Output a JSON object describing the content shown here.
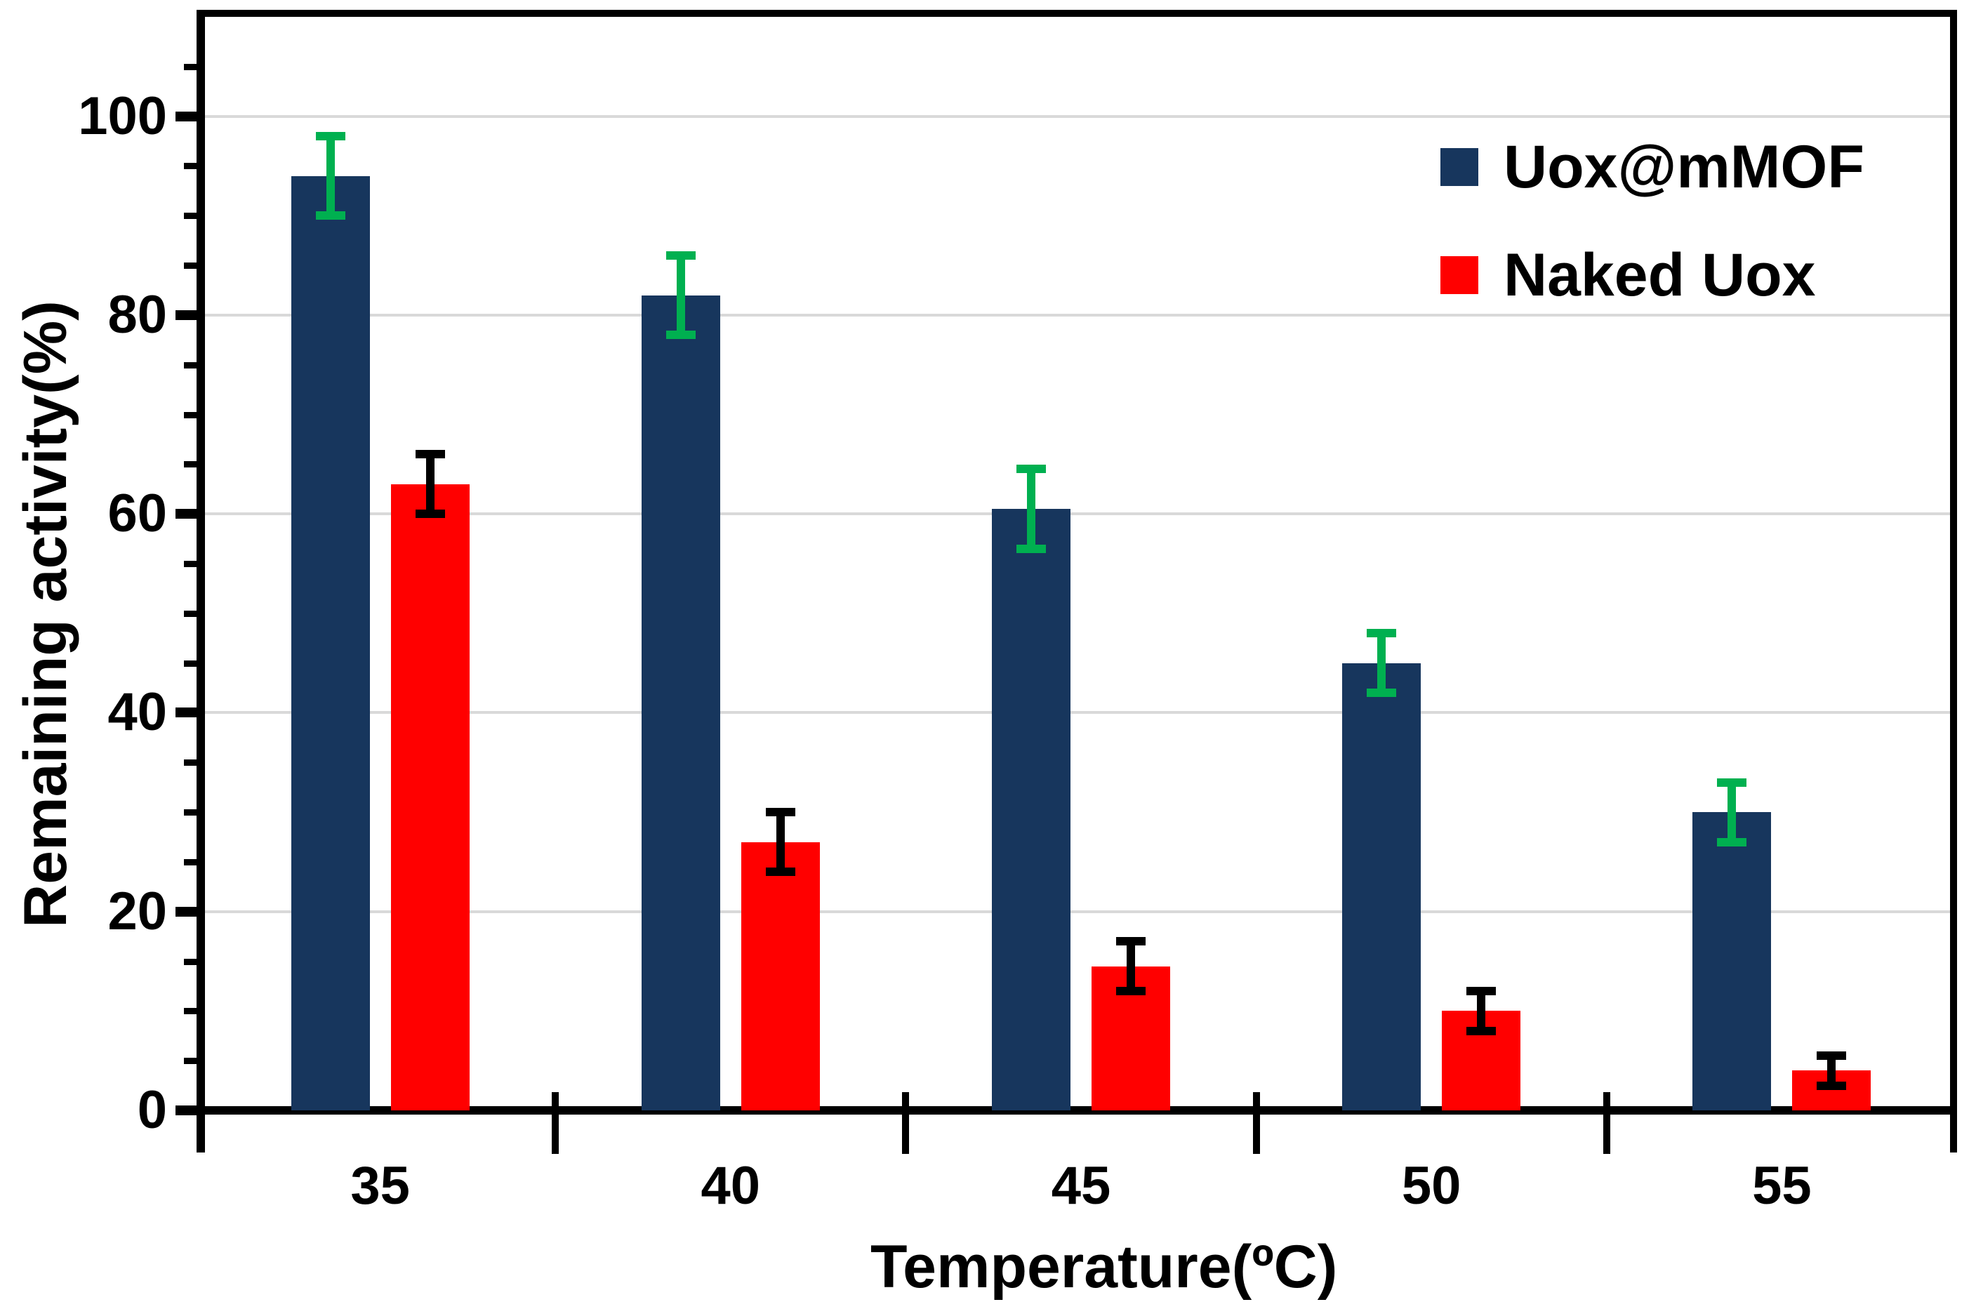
{
  "chart_data": {
    "type": "bar",
    "title": "",
    "categories": [
      "35",
      "40",
      "45",
      "50",
      "55"
    ],
    "xlabel": "Temperature(ºC)",
    "ylabel": "Remaining activity(%)",
    "ylim": [
      0,
      110
    ],
    "ytick_major": [
      0,
      20,
      40,
      60,
      80,
      100
    ],
    "ytick_minor_step": 5,
    "gridlines": [
      20,
      40,
      60,
      80,
      100
    ],
    "grid": true,
    "legend_position": "top-right",
    "series": [
      {
        "name": "Uox@mMOF",
        "color": "#17365D",
        "error_color": "#00B050",
        "values": [
          94,
          82,
          60.5,
          45,
          30
        ],
        "errors": [
          4,
          4,
          4,
          3,
          3
        ]
      },
      {
        "name": "Naked Uox",
        "color": "#FF0000",
        "error_color": "#000000",
        "values": [
          63,
          27,
          14.5,
          10,
          4
        ],
        "errors": [
          3,
          3,
          2.5,
          2,
          1.5
        ]
      }
    ]
  },
  "colors": {
    "axis": "#000000",
    "grid": "#D9D9D9",
    "background": "#FFFFFF"
  }
}
